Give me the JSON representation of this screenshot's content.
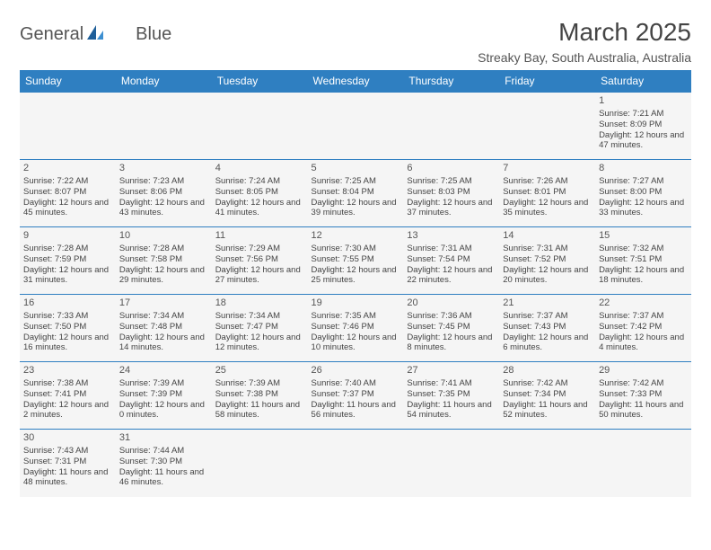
{
  "brand": {
    "name_a": "General",
    "name_b": "Blue"
  },
  "title": "March 2025",
  "subtitle": "Streaky Bay, South Australia, Australia",
  "colors": {
    "header_bg": "#2f7fc1",
    "header_text": "#ffffff",
    "cell_bg": "#f5f5f5",
    "border": "#2f7fc1",
    "text": "#444444",
    "logo_gray": "#555555",
    "logo_blue": "#2b6cb0"
  },
  "day_headers": [
    "Sunday",
    "Monday",
    "Tuesday",
    "Wednesday",
    "Thursday",
    "Friday",
    "Saturday"
  ],
  "weeks": [
    [
      null,
      null,
      null,
      null,
      null,
      null,
      {
        "n": "1",
        "sr": "Sunrise: 7:21 AM",
        "ss": "Sunset: 8:09 PM",
        "dl": "Daylight: 12 hours and 47 minutes."
      }
    ],
    [
      {
        "n": "2",
        "sr": "Sunrise: 7:22 AM",
        "ss": "Sunset: 8:07 PM",
        "dl": "Daylight: 12 hours and 45 minutes."
      },
      {
        "n": "3",
        "sr": "Sunrise: 7:23 AM",
        "ss": "Sunset: 8:06 PM",
        "dl": "Daylight: 12 hours and 43 minutes."
      },
      {
        "n": "4",
        "sr": "Sunrise: 7:24 AM",
        "ss": "Sunset: 8:05 PM",
        "dl": "Daylight: 12 hours and 41 minutes."
      },
      {
        "n": "5",
        "sr": "Sunrise: 7:25 AM",
        "ss": "Sunset: 8:04 PM",
        "dl": "Daylight: 12 hours and 39 minutes."
      },
      {
        "n": "6",
        "sr": "Sunrise: 7:25 AM",
        "ss": "Sunset: 8:03 PM",
        "dl": "Daylight: 12 hours and 37 minutes."
      },
      {
        "n": "7",
        "sr": "Sunrise: 7:26 AM",
        "ss": "Sunset: 8:01 PM",
        "dl": "Daylight: 12 hours and 35 minutes."
      },
      {
        "n": "8",
        "sr": "Sunrise: 7:27 AM",
        "ss": "Sunset: 8:00 PM",
        "dl": "Daylight: 12 hours and 33 minutes."
      }
    ],
    [
      {
        "n": "9",
        "sr": "Sunrise: 7:28 AM",
        "ss": "Sunset: 7:59 PM",
        "dl": "Daylight: 12 hours and 31 minutes."
      },
      {
        "n": "10",
        "sr": "Sunrise: 7:28 AM",
        "ss": "Sunset: 7:58 PM",
        "dl": "Daylight: 12 hours and 29 minutes."
      },
      {
        "n": "11",
        "sr": "Sunrise: 7:29 AM",
        "ss": "Sunset: 7:56 PM",
        "dl": "Daylight: 12 hours and 27 minutes."
      },
      {
        "n": "12",
        "sr": "Sunrise: 7:30 AM",
        "ss": "Sunset: 7:55 PM",
        "dl": "Daylight: 12 hours and 25 minutes."
      },
      {
        "n": "13",
        "sr": "Sunrise: 7:31 AM",
        "ss": "Sunset: 7:54 PM",
        "dl": "Daylight: 12 hours and 22 minutes."
      },
      {
        "n": "14",
        "sr": "Sunrise: 7:31 AM",
        "ss": "Sunset: 7:52 PM",
        "dl": "Daylight: 12 hours and 20 minutes."
      },
      {
        "n": "15",
        "sr": "Sunrise: 7:32 AM",
        "ss": "Sunset: 7:51 PM",
        "dl": "Daylight: 12 hours and 18 minutes."
      }
    ],
    [
      {
        "n": "16",
        "sr": "Sunrise: 7:33 AM",
        "ss": "Sunset: 7:50 PM",
        "dl": "Daylight: 12 hours and 16 minutes."
      },
      {
        "n": "17",
        "sr": "Sunrise: 7:34 AM",
        "ss": "Sunset: 7:48 PM",
        "dl": "Daylight: 12 hours and 14 minutes."
      },
      {
        "n": "18",
        "sr": "Sunrise: 7:34 AM",
        "ss": "Sunset: 7:47 PM",
        "dl": "Daylight: 12 hours and 12 minutes."
      },
      {
        "n": "19",
        "sr": "Sunrise: 7:35 AM",
        "ss": "Sunset: 7:46 PM",
        "dl": "Daylight: 12 hours and 10 minutes."
      },
      {
        "n": "20",
        "sr": "Sunrise: 7:36 AM",
        "ss": "Sunset: 7:45 PM",
        "dl": "Daylight: 12 hours and 8 minutes."
      },
      {
        "n": "21",
        "sr": "Sunrise: 7:37 AM",
        "ss": "Sunset: 7:43 PM",
        "dl": "Daylight: 12 hours and 6 minutes."
      },
      {
        "n": "22",
        "sr": "Sunrise: 7:37 AM",
        "ss": "Sunset: 7:42 PM",
        "dl": "Daylight: 12 hours and 4 minutes."
      }
    ],
    [
      {
        "n": "23",
        "sr": "Sunrise: 7:38 AM",
        "ss": "Sunset: 7:41 PM",
        "dl": "Daylight: 12 hours and 2 minutes."
      },
      {
        "n": "24",
        "sr": "Sunrise: 7:39 AM",
        "ss": "Sunset: 7:39 PM",
        "dl": "Daylight: 12 hours and 0 minutes."
      },
      {
        "n": "25",
        "sr": "Sunrise: 7:39 AM",
        "ss": "Sunset: 7:38 PM",
        "dl": "Daylight: 11 hours and 58 minutes."
      },
      {
        "n": "26",
        "sr": "Sunrise: 7:40 AM",
        "ss": "Sunset: 7:37 PM",
        "dl": "Daylight: 11 hours and 56 minutes."
      },
      {
        "n": "27",
        "sr": "Sunrise: 7:41 AM",
        "ss": "Sunset: 7:35 PM",
        "dl": "Daylight: 11 hours and 54 minutes."
      },
      {
        "n": "28",
        "sr": "Sunrise: 7:42 AM",
        "ss": "Sunset: 7:34 PM",
        "dl": "Daylight: 11 hours and 52 minutes."
      },
      {
        "n": "29",
        "sr": "Sunrise: 7:42 AM",
        "ss": "Sunset: 7:33 PM",
        "dl": "Daylight: 11 hours and 50 minutes."
      }
    ],
    [
      {
        "n": "30",
        "sr": "Sunrise: 7:43 AM",
        "ss": "Sunset: 7:31 PM",
        "dl": "Daylight: 11 hours and 48 minutes."
      },
      {
        "n": "31",
        "sr": "Sunrise: 7:44 AM",
        "ss": "Sunset: 7:30 PM",
        "dl": "Daylight: 11 hours and 46 minutes."
      },
      null,
      null,
      null,
      null,
      null
    ]
  ]
}
